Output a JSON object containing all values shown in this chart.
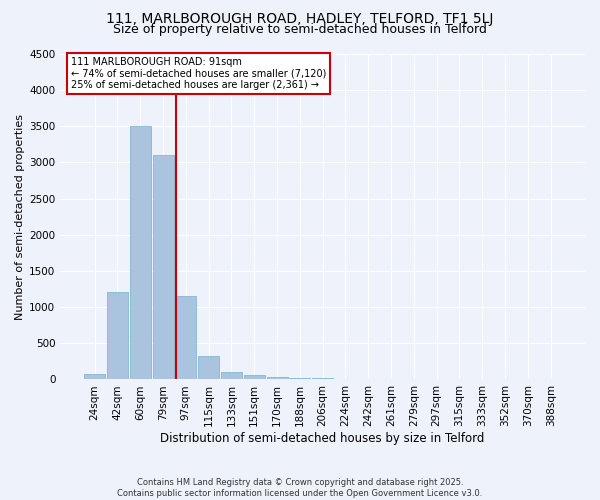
{
  "title": "111, MARLBOROUGH ROAD, HADLEY, TELFORD, TF1 5LJ",
  "subtitle": "Size of property relative to semi-detached houses in Telford",
  "xlabel": "Distribution of semi-detached houses by size in Telford",
  "ylabel": "Number of semi-detached properties",
  "bar_labels": [
    "24sqm",
    "42sqm",
    "60sqm",
    "79sqm",
    "97sqm",
    "115sqm",
    "133sqm",
    "151sqm",
    "170sqm",
    "188sqm",
    "206sqm",
    "224sqm",
    "242sqm",
    "261sqm",
    "279sqm",
    "297sqm",
    "315sqm",
    "333sqm",
    "352sqm",
    "370sqm",
    "388sqm"
  ],
  "bar_values": [
    80,
    1210,
    3510,
    3110,
    1150,
    330,
    100,
    55,
    40,
    25,
    15,
    10,
    8,
    6,
    5,
    5,
    5,
    5,
    5,
    5,
    5
  ],
  "bar_color": "#aac4e0",
  "bar_edge_color": "#7aaed0",
  "property_label": "111 MARLBOROUGH ROAD: 91sqm",
  "pct_smaller": 74,
  "count_smaller": "7,120",
  "pct_larger": 25,
  "count_larger": "2,361",
  "vline_color": "#cc0000",
  "annotation_box_color": "#cc0000",
  "ylim": [
    0,
    4500
  ],
  "yticks": [
    0,
    500,
    1000,
    1500,
    2000,
    2500,
    3000,
    3500,
    4000,
    4500
  ],
  "bg_color": "#eef2fb",
  "footer_line1": "Contains HM Land Registry data © Crown copyright and database right 2025.",
  "footer_line2": "Contains public sector information licensed under the Open Government Licence v3.0.",
  "title_fontsize": 10,
  "subtitle_fontsize": 9,
  "vline_x_index": 3.55
}
